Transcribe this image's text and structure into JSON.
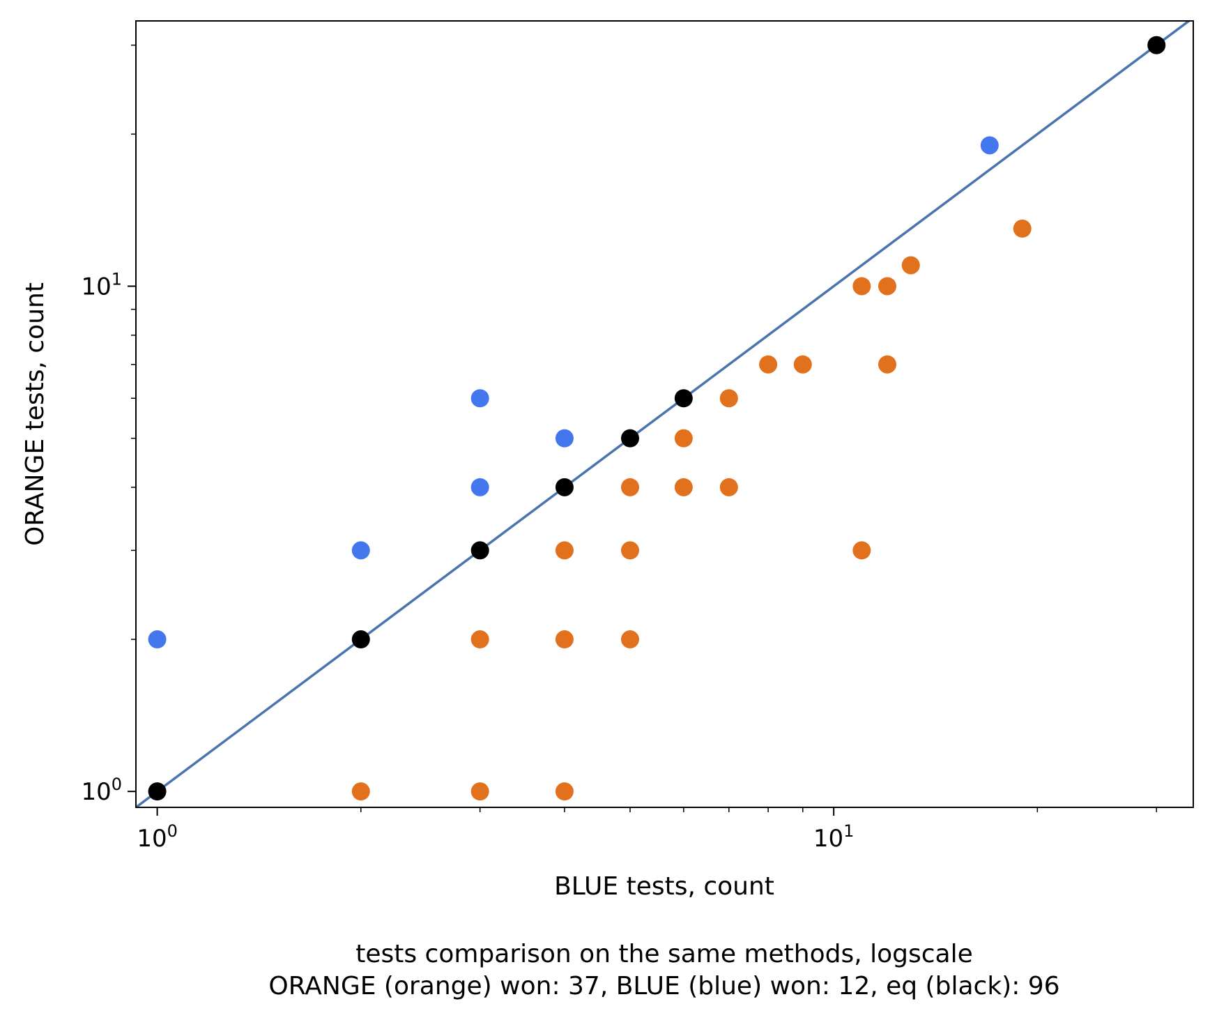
{
  "chart_data": {
    "type": "scatter",
    "xlabel": "BLUE tests, count",
    "ylabel": "ORANGE tests, count",
    "caption_line1": "tests comparison on the same methods, logscale",
    "caption_line2": "ORANGE (orange) won: 37, BLUE (blue) won: 12, eq (black): 96",
    "x_scale": "log",
    "y_scale": "log",
    "xlim": [
      0.93,
      34
    ],
    "ylim": [
      0.93,
      33.5
    ],
    "grid": false,
    "x_ticks": [
      {
        "value": 1,
        "base": "10",
        "exp": "0"
      },
      {
        "value": 10,
        "base": "10",
        "exp": "1"
      }
    ],
    "y_ticks": [
      {
        "value": 1,
        "base": "10",
        "exp": "0"
      },
      {
        "value": 10,
        "base": "10",
        "exp": "1"
      }
    ],
    "reference_line": {
      "type": "y=x",
      "color": "#4a74ad"
    },
    "series": [
      {
        "name": "ORANGE",
        "color": "#e2711d",
        "points": [
          [
            2,
            1
          ],
          [
            3,
            1
          ],
          [
            4,
            1
          ],
          [
            3,
            2
          ],
          [
            4,
            2
          ],
          [
            5,
            2
          ],
          [
            4,
            3
          ],
          [
            5,
            3
          ],
          [
            5,
            4
          ],
          [
            6,
            4
          ],
          [
            7,
            4
          ],
          [
            6,
            5
          ],
          [
            7,
            6
          ],
          [
            8,
            7
          ],
          [
            9,
            7
          ],
          [
            11,
            3
          ],
          [
            11,
            10
          ],
          [
            12,
            10
          ],
          [
            12,
            7
          ],
          [
            13,
            11
          ],
          [
            19,
            13
          ]
        ]
      },
      {
        "name": "BLUE",
        "color": "#4477ee",
        "points": [
          [
            1,
            2
          ],
          [
            2,
            3
          ],
          [
            3,
            4
          ],
          [
            3,
            6
          ],
          [
            4,
            5
          ],
          [
            17,
            19
          ]
        ]
      },
      {
        "name": "eq",
        "color": "#000000",
        "points": [
          [
            1,
            1
          ],
          [
            2,
            2
          ],
          [
            3,
            3
          ],
          [
            4,
            4
          ],
          [
            5,
            5
          ],
          [
            6,
            6
          ],
          [
            30,
            30
          ]
        ]
      }
    ]
  }
}
